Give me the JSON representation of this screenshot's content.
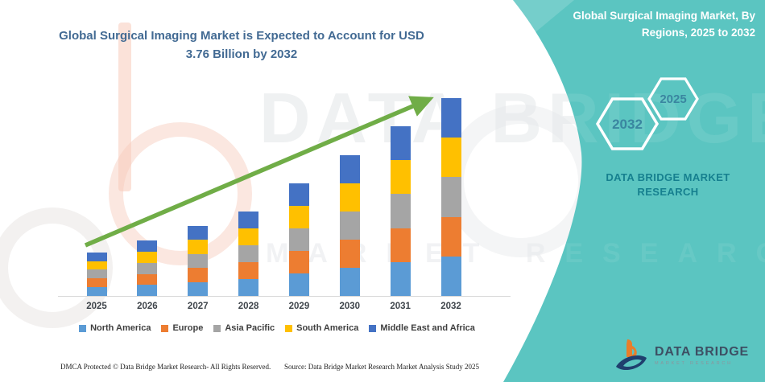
{
  "header": {
    "title_line1": "Global Surgical Imaging Market is Expected to Account for USD",
    "title_line2": "3.76 Billion by 2032"
  },
  "chart_data": {
    "type": "bar",
    "stacked": true,
    "title": "Global Surgical Imaging Market is Expected to Account for USD 3.76 Billion by 2032",
    "unit": "USD Billion",
    "categories": [
      "2025",
      "2026",
      "2027",
      "2028",
      "2029",
      "2030",
      "2031",
      "2032"
    ],
    "totals_usd_billion": [
      0.83,
      1.05,
      1.33,
      1.61,
      2.14,
      2.67,
      3.23,
      3.76
    ],
    "final_value_label": "USD 3.76 Billion by 2032",
    "series": [
      {
        "name": "North America",
        "color": "#5B9BD5",
        "values": [
          0.166,
          0.21,
          0.266,
          0.322,
          0.428,
          0.534,
          0.646,
          0.752
        ]
      },
      {
        "name": "Europe",
        "color": "#ED7D31",
        "values": [
          0.166,
          0.21,
          0.266,
          0.322,
          0.428,
          0.534,
          0.646,
          0.752
        ]
      },
      {
        "name": "Asia Pacific",
        "color": "#A5A5A5",
        "values": [
          0.166,
          0.21,
          0.266,
          0.322,
          0.428,
          0.534,
          0.646,
          0.752
        ]
      },
      {
        "name": "South America",
        "color": "#FFC000",
        "values": [
          0.166,
          0.21,
          0.266,
          0.322,
          0.428,
          0.534,
          0.646,
          0.752
        ]
      },
      {
        "name": "Middle East and Africa",
        "color": "#4472C4",
        "values": [
          0.166,
          0.21,
          0.266,
          0.322,
          0.428,
          0.534,
          0.646,
          0.752
        ]
      }
    ],
    "legend_position": "bottom",
    "x_axis_labels_bold": true,
    "y_axis_visible": false,
    "grid": false,
    "trend_arrow_color": "#70AD47"
  },
  "right_panel": {
    "background_color": "#5BC5C1",
    "title_line1": "Global Surgical Imaging Market, By",
    "title_line2": "Regions, 2025 to 2032",
    "hexagon_large_label": "2032",
    "hexagon_small_label": "2025",
    "brand_line1": "DATA BRIDGE MARKET",
    "brand_line2": "RESEARCH",
    "logo_name": "DATA BRIDGE",
    "logo_sub": "MARKET RESEARCH"
  },
  "footer": {
    "left_text": "DMCA Protected © Data Bridge Market Research-  All Rights Reserved.",
    "right_text": "Source: Data Bridge Market Research  Market Analysis Study 2025"
  },
  "watermark": {
    "line1": "DATA BRIDGE",
    "line2": "MARKET RESEARCH"
  }
}
